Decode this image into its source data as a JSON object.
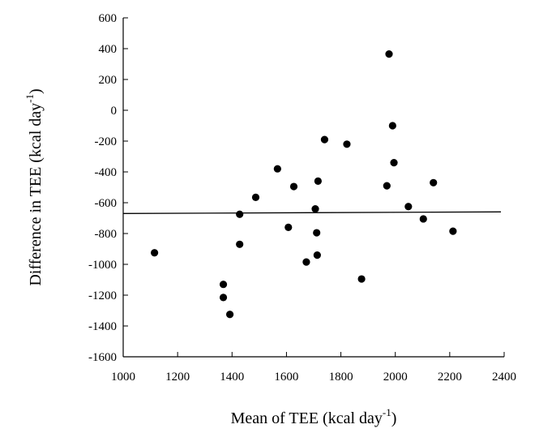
{
  "chart_data": {
    "type": "scatter",
    "xlabel": "Mean of TEE (kcal day",
    "xlabel_sup": "-1",
    "xlabel_end": ")",
    "ylabel": "Difference in TEE (kcal day",
    "ylabel_sup": "-1",
    "ylabel_end": ")",
    "xlim": [
      1000,
      2400
    ],
    "ylim": [
      -1600,
      600
    ],
    "xticks": [
      "1000",
      "1200",
      "1400",
      "1600",
      "1800",
      "2000",
      "2200",
      "2400"
    ],
    "yticks": [
      "600",
      "400",
      "200",
      "0",
      "-200",
      "-400",
      "-600",
      "-800",
      "-1000",
      "-1200",
      "-1400",
      "-1600"
    ],
    "mean_line": -670,
    "grid": false,
    "points": [
      {
        "x": 1115,
        "y": -925
      },
      {
        "x": 1368,
        "y": -1130
      },
      {
        "x": 1368,
        "y": -1215
      },
      {
        "x": 1392,
        "y": -1325
      },
      {
        "x": 1428,
        "y": -870
      },
      {
        "x": 1428,
        "y": -675
      },
      {
        "x": 1487,
        "y": -565
      },
      {
        "x": 1567,
        "y": -380
      },
      {
        "x": 1607,
        "y": -760
      },
      {
        "x": 1627,
        "y": -495
      },
      {
        "x": 1673,
        "y": -985
      },
      {
        "x": 1706,
        "y": -640
      },
      {
        "x": 1711,
        "y": -795
      },
      {
        "x": 1713,
        "y": -940
      },
      {
        "x": 1716,
        "y": -460
      },
      {
        "x": 1740,
        "y": -190
      },
      {
        "x": 1822,
        "y": -220
      },
      {
        "x": 1876,
        "y": -1095
      },
      {
        "x": 1969,
        "y": -490
      },
      {
        "x": 1977,
        "y": 365
      },
      {
        "x": 1990,
        "y": -100
      },
      {
        "x": 1995,
        "y": -340
      },
      {
        "x": 2048,
        "y": -625
      },
      {
        "x": 2103,
        "y": -705
      },
      {
        "x": 2140,
        "y": -470
      },
      {
        "x": 2212,
        "y": -785
      }
    ]
  }
}
